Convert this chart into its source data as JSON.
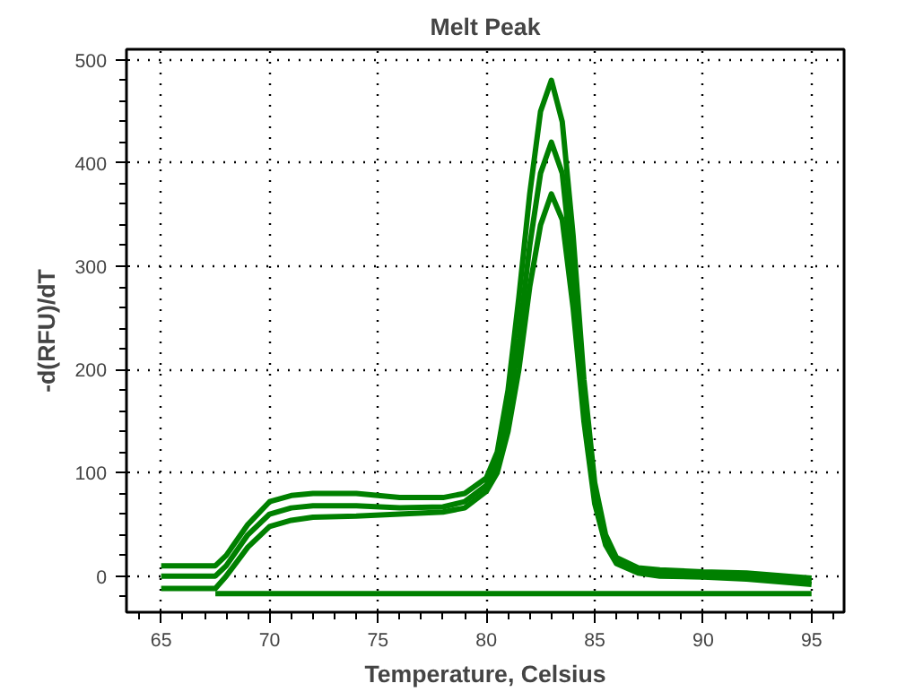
{
  "chart_data": {
    "type": "line",
    "title": "Melt Peak",
    "xlabel": "Temperature, Celsius",
    "ylabel": "-d(RFU)/dT",
    "xlim": [
      63.4,
      96.5
    ],
    "ylim": [
      -35,
      510
    ],
    "xticks": [
      65,
      70,
      75,
      80,
      85,
      90,
      95
    ],
    "yticks": [
      0,
      100,
      200,
      300,
      400,
      500
    ],
    "grid": true,
    "line_style": "solid",
    "marker": "none",
    "series": [
      {
        "color": "#008000",
        "x": [
          65,
          67,
          67.5,
          68,
          69,
          70,
          71,
          72,
          74,
          76,
          78,
          79,
          80,
          80.5,
          81,
          81.5,
          82,
          82.5,
          83,
          83.5,
          84,
          84.5,
          85,
          85.5,
          86,
          87,
          88,
          90,
          92,
          95
        ],
        "values": [
          10,
          10,
          10,
          20,
          50,
          72,
          78,
          80,
          80,
          76,
          76,
          80,
          95,
          120,
          180,
          270,
          370,
          450,
          480,
          440,
          330,
          190,
          90,
          40,
          18,
          8,
          6,
          4,
          3,
          -2
        ]
      },
      {
        "color": "#008000",
        "x": [
          65,
          67,
          67.5,
          68,
          69,
          70,
          71,
          72,
          74,
          76,
          78,
          79,
          80,
          80.5,
          81,
          81.5,
          82,
          82.5,
          83,
          83.5,
          84,
          84.5,
          85,
          85.5,
          86,
          87,
          88,
          90,
          92,
          95
        ],
        "values": [
          0,
          0,
          0,
          10,
          40,
          60,
          66,
          68,
          68,
          66,
          67,
          72,
          88,
          110,
          160,
          230,
          320,
          390,
          420,
          390,
          290,
          170,
          80,
          35,
          15,
          5,
          3,
          2,
          0,
          -5
        ]
      },
      {
        "color": "#008000",
        "x": [
          65,
          67,
          67.5,
          68,
          69,
          70,
          71,
          72,
          74,
          76,
          78,
          79,
          80,
          80.5,
          81,
          81.5,
          82,
          82.5,
          83,
          83.5,
          84,
          84.5,
          85,
          85.5,
          86,
          87,
          88,
          90,
          92,
          95
        ],
        "values": [
          -12,
          -12,
          -12,
          0,
          28,
          48,
          54,
          57,
          58,
          60,
          62,
          66,
          82,
          100,
          140,
          200,
          280,
          340,
          370,
          345,
          260,
          150,
          70,
          30,
          12,
          3,
          0,
          -1,
          -3,
          -8
        ]
      },
      {
        "color": "#008000",
        "x": [
          67.5,
          95
        ],
        "values": [
          -17,
          -17
        ]
      }
    ]
  }
}
